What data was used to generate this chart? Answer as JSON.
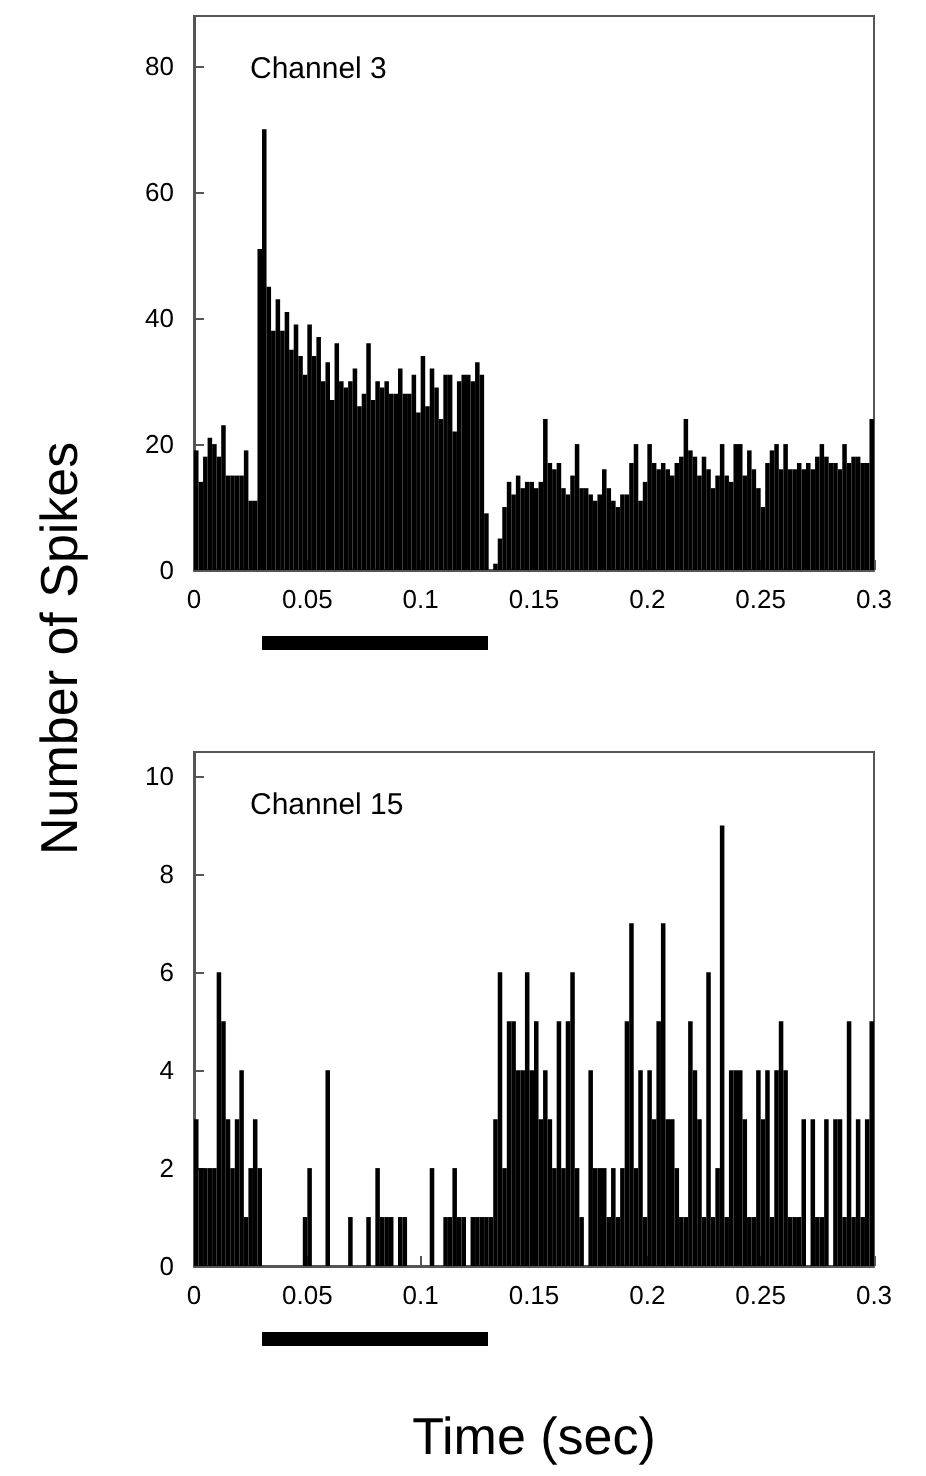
{
  "chart_data": [
    {
      "type": "histogram",
      "title": "Channel 3",
      "ylabel": "Number of Spikes",
      "color": "#000000",
      "bins": [
        0,
        0.002,
        0.004,
        0.006,
        0.008,
        0.01,
        0.012,
        0.014,
        0.016,
        0.018,
        0.02,
        0.022,
        0.024,
        0.026,
        0.028,
        0.03,
        0.032,
        0.034,
        0.036,
        0.038,
        0.04,
        0.042,
        0.044,
        0.046,
        0.048,
        0.05,
        0.052,
        0.054,
        0.056,
        0.058,
        0.06,
        0.062,
        0.064,
        0.066,
        0.068,
        0.07,
        0.072,
        0.074,
        0.076,
        0.078,
        0.08,
        0.082,
        0.084,
        0.086,
        0.088,
        0.09,
        0.092,
        0.094,
        0.096,
        0.098,
        0.1,
        0.102,
        0.104,
        0.106,
        0.108,
        0.11,
        0.112,
        0.114,
        0.116,
        0.118,
        0.12,
        0.122,
        0.124,
        0.126,
        0.128,
        0.13,
        0.132,
        0.134,
        0.136,
        0.138,
        0.14,
        0.142,
        0.144,
        0.146,
        0.148,
        0.15,
        0.152,
        0.154,
        0.156,
        0.158,
        0.16,
        0.162,
        0.164,
        0.166,
        0.168,
        0.17,
        0.172,
        0.174,
        0.176,
        0.178,
        0.18,
        0.182,
        0.184,
        0.186,
        0.188,
        0.19,
        0.192,
        0.194,
        0.196,
        0.198,
        0.2,
        0.202,
        0.204,
        0.206,
        0.208,
        0.21,
        0.212,
        0.214,
        0.216,
        0.218,
        0.22,
        0.222,
        0.224,
        0.226,
        0.228,
        0.23,
        0.232,
        0.234,
        0.236,
        0.238,
        0.24,
        0.242,
        0.244,
        0.246,
        0.248,
        0.25,
        0.252,
        0.254,
        0.256,
        0.258,
        0.26,
        0.262,
        0.264,
        0.266,
        0.268,
        0.27,
        0.272,
        0.274,
        0.276,
        0.278,
        0.28,
        0.282,
        0.284,
        0.286,
        0.288,
        0.29,
        0.292,
        0.294,
        0.296,
        0.298,
        0.3
      ],
      "values": [
        19,
        14,
        18,
        21,
        20,
        18,
        23,
        15,
        15,
        15,
        15,
        19,
        11,
        11,
        51,
        70,
        45,
        38,
        43,
        38,
        41,
        35,
        39,
        34,
        31,
        39,
        34,
        37,
        30,
        33,
        27,
        36,
        30,
        29,
        30,
        32,
        26,
        28,
        36,
        27,
        30,
        29,
        30,
        28,
        28,
        32,
        28,
        28,
        31,
        25,
        34,
        26,
        32,
        29,
        24,
        31,
        31,
        22,
        30,
        31,
        31,
        30,
        33,
        31,
        9,
        0,
        1,
        5,
        10,
        14,
        12,
        15,
        13,
        14,
        14,
        13,
        14,
        24,
        17,
        16,
        17,
        13,
        12,
        15,
        20,
        13,
        13,
        12,
        11,
        12,
        16,
        13,
        11,
        10,
        12,
        12,
        17,
        20,
        11,
        14,
        20,
        17,
        16,
        17,
        16,
        15,
        17,
        18,
        24,
        19,
        18,
        15,
        18,
        16,
        13,
        15,
        20,
        15,
        14,
        20,
        20,
        15,
        19,
        16,
        13,
        10,
        17,
        19,
        20,
        16,
        20,
        16,
        16,
        17,
        16,
        17,
        16,
        18,
        20,
        18,
        17,
        17,
        16,
        20,
        17,
        18,
        18,
        17,
        17,
        24
      ],
      "xlim": [
        0,
        0.3
      ],
      "xticks": [
        0,
        0.05,
        0.1,
        0.15,
        0.2,
        0.25,
        0.3
      ],
      "ylim": [
        0,
        88
      ],
      "yticks": [
        0,
        20,
        40,
        60,
        80
      ]
    },
    {
      "type": "histogram",
      "title": "Channel 15",
      "xlabel": "Time (sec)",
      "color": "#000000",
      "bins": [
        0,
        0.002,
        0.004,
        0.006,
        0.008,
        0.01,
        0.012,
        0.014,
        0.016,
        0.018,
        0.02,
        0.022,
        0.024,
        0.026,
        0.028,
        0.03,
        0.032,
        0.034,
        0.036,
        0.038,
        0.04,
        0.042,
        0.044,
        0.046,
        0.048,
        0.05,
        0.052,
        0.054,
        0.056,
        0.058,
        0.06,
        0.062,
        0.064,
        0.066,
        0.068,
        0.07,
        0.072,
        0.074,
        0.076,
        0.078,
        0.08,
        0.082,
        0.084,
        0.086,
        0.088,
        0.09,
        0.092,
        0.094,
        0.096,
        0.098,
        0.1,
        0.102,
        0.104,
        0.106,
        0.108,
        0.11,
        0.112,
        0.114,
        0.116,
        0.118,
        0.12,
        0.122,
        0.124,
        0.126,
        0.128,
        0.13,
        0.132,
        0.134,
        0.136,
        0.138,
        0.14,
        0.142,
        0.144,
        0.146,
        0.148,
        0.15,
        0.152,
        0.154,
        0.156,
        0.158,
        0.16,
        0.162,
        0.164,
        0.166,
        0.168,
        0.17,
        0.172,
        0.174,
        0.176,
        0.178,
        0.18,
        0.182,
        0.184,
        0.186,
        0.188,
        0.19,
        0.192,
        0.194,
        0.196,
        0.198,
        0.2,
        0.202,
        0.204,
        0.206,
        0.208,
        0.21,
        0.212,
        0.214,
        0.216,
        0.218,
        0.22,
        0.222,
        0.224,
        0.226,
        0.228,
        0.23,
        0.232,
        0.234,
        0.236,
        0.238,
        0.24,
        0.242,
        0.244,
        0.246,
        0.248,
        0.25,
        0.252,
        0.254,
        0.256,
        0.258,
        0.26,
        0.262,
        0.264,
        0.266,
        0.268,
        0.27,
        0.272,
        0.274,
        0.276,
        0.278,
        0.28,
        0.282,
        0.284,
        0.286,
        0.288,
        0.29,
        0.292,
        0.294,
        0.296,
        0.298,
        0.3
      ],
      "values": [
        3,
        2,
        2,
        2,
        2,
        6,
        5,
        3,
        2,
        3,
        4,
        1,
        2,
        3,
        2,
        0,
        0,
        0,
        0,
        0,
        0,
        0,
        0,
        0,
        1,
        2,
        0,
        0,
        0,
        4,
        0,
        0,
        0,
        0,
        1,
        0,
        0,
        0,
        1,
        0,
        2,
        1,
        1,
        1,
        0,
        1,
        1,
        0,
        0,
        0,
        0,
        0,
        2,
        0,
        0,
        1,
        1,
        2,
        1,
        1,
        0,
        1,
        1,
        1,
        1,
        1,
        3,
        6,
        2,
        5,
        5,
        4,
        4,
        6,
        4,
        5,
        3,
        4,
        3,
        2,
        5,
        2,
        5,
        6,
        2,
        1,
        0,
        4,
        2,
        2,
        2,
        1,
        2,
        1,
        2,
        5,
        7,
        2,
        4,
        1,
        4,
        3,
        5,
        7,
        3,
        3,
        2,
        1,
        1,
        5,
        4,
        3,
        1,
        6,
        1,
        2,
        9,
        1,
        4,
        4,
        4,
        3,
        1,
        1,
        4,
        3,
        4,
        1,
        4,
        5,
        4,
        1,
        1,
        1,
        3,
        0,
        3,
        1,
        1,
        3,
        0,
        3,
        3,
        1,
        5,
        1,
        3,
        1,
        3,
        5
      ],
      "xlim": [
        0,
        0.3
      ],
      "xticks": [
        0,
        0.05,
        0.1,
        0.15,
        0.2,
        0.25,
        0.3
      ],
      "ylim": [
        0,
        10.5
      ],
      "yticks": [
        0,
        2,
        4,
        6,
        8,
        10
      ]
    }
  ]
}
